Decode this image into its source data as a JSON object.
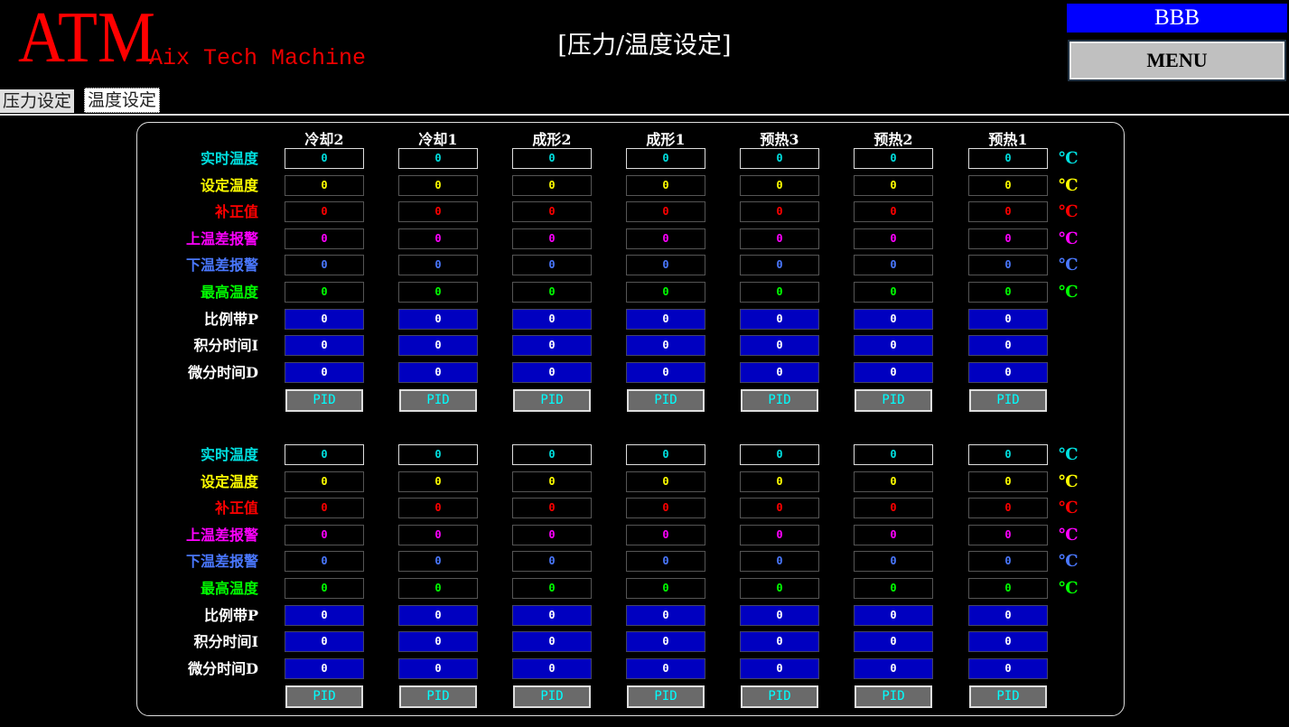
{
  "header": {
    "logo": "ATM",
    "subtitle": "Aix Tech Machine",
    "title": "[压力/温度设定]",
    "user": "BBB",
    "menu_label": "MENU"
  },
  "tabs": [
    {
      "label": "压力设定",
      "active": false
    },
    {
      "label": "温度设定",
      "active": true
    }
  ],
  "columns": [
    "冷却2",
    "冷却1",
    "成形2",
    "成形1",
    "预热3",
    "预热2",
    "预热1"
  ],
  "rows": [
    {
      "label": "实时温度",
      "color": "#00e0e0",
      "unit": "℃"
    },
    {
      "label": "设定温度",
      "color": "#ffff00",
      "unit": "℃"
    },
    {
      "label": "补正值",
      "color": "#ff0000",
      "unit": "℃"
    },
    {
      "label": "上温差报警",
      "color": "#ff00ff",
      "unit": "℃"
    },
    {
      "label": "下温差报警",
      "color": "#4a78ff",
      "unit": "℃"
    },
    {
      "label": "最高温度",
      "color": "#00ff00",
      "unit": "℃"
    },
    {
      "label": "比例带P",
      "color": "#ffffff",
      "unit": ""
    },
    {
      "label": "积分时间I",
      "color": "#ffffff",
      "unit": ""
    },
    {
      "label": "微分时间D",
      "color": "#ffffff",
      "unit": ""
    }
  ],
  "pid_label": "PID",
  "groups": [
    {
      "values": [
        [
          "0",
          "0",
          "0",
          "0",
          "0",
          "0",
          "0"
        ],
        [
          "0",
          "0",
          "0",
          "0",
          "0",
          "0",
          "0"
        ],
        [
          "0",
          "0",
          "0",
          "0",
          "0",
          "0",
          "0"
        ],
        [
          "0",
          "0",
          "0",
          "0",
          "0",
          "0",
          "0"
        ],
        [
          "0",
          "0",
          "0",
          "0",
          "0",
          "0",
          "0"
        ],
        [
          "0",
          "0",
          "0",
          "0",
          "0",
          "0",
          "0"
        ],
        [
          "0",
          "0",
          "0",
          "0",
          "0",
          "0",
          "0"
        ],
        [
          "0",
          "0",
          "0",
          "0",
          "0",
          "0",
          "0"
        ],
        [
          "0",
          "0",
          "0",
          "0",
          "0",
          "0",
          "0"
        ]
      ]
    },
    {
      "values": [
        [
          "0",
          "0",
          "0",
          "0",
          "0",
          "0",
          "0"
        ],
        [
          "0",
          "0",
          "0",
          "0",
          "0",
          "0",
          "0"
        ],
        [
          "0",
          "0",
          "0",
          "0",
          "0",
          "0",
          "0"
        ],
        [
          "0",
          "0",
          "0",
          "0",
          "0",
          "0",
          "0"
        ],
        [
          "0",
          "0",
          "0",
          "0",
          "0",
          "0",
          "0"
        ],
        [
          "0",
          "0",
          "0",
          "0",
          "0",
          "0",
          "0"
        ],
        [
          "0",
          "0",
          "0",
          "0",
          "0",
          "0",
          "0"
        ],
        [
          "0",
          "0",
          "0",
          "0",
          "0",
          "0",
          "0"
        ],
        [
          "0",
          "0",
          "0",
          "0",
          "0",
          "0",
          "0"
        ]
      ]
    }
  ]
}
